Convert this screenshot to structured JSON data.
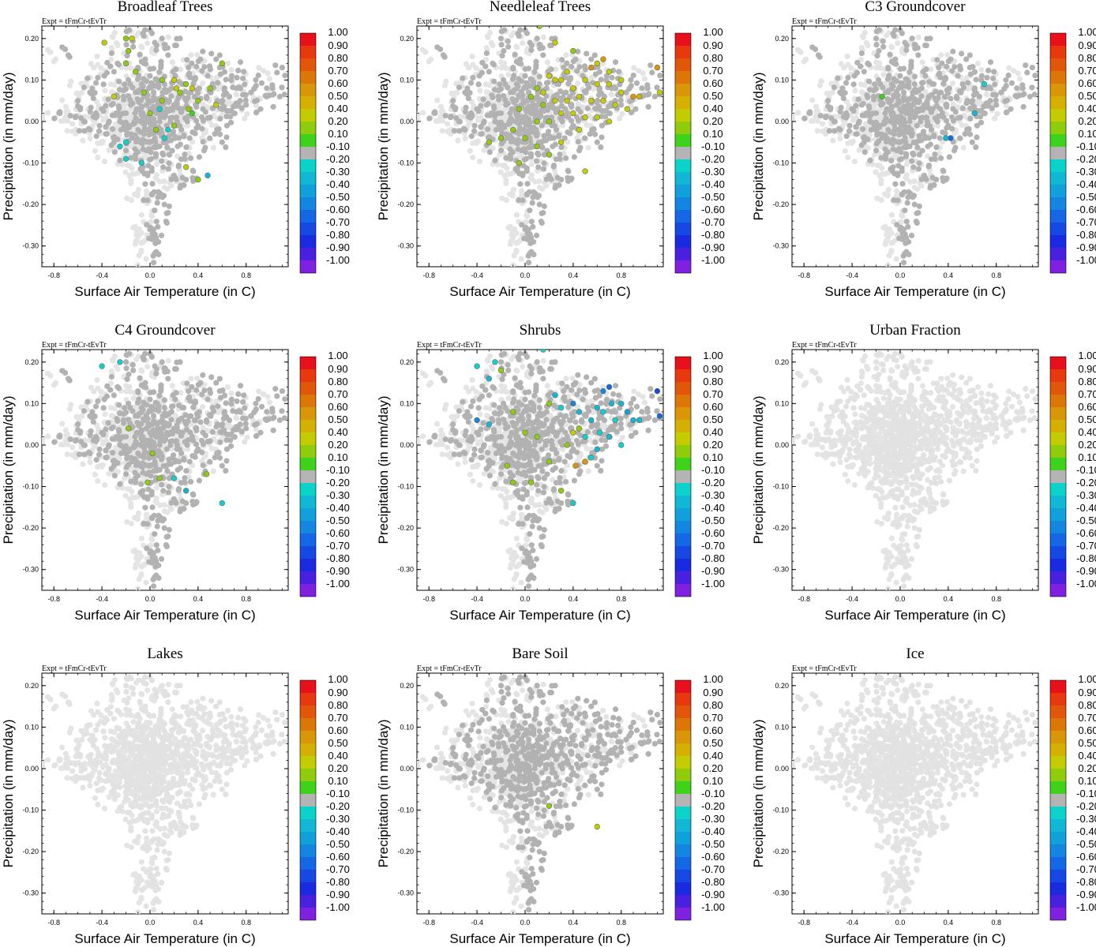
{
  "figure": {
    "experiment_label": "Expt = tFmCr-tEvTr",
    "xlabel": "Surface Air Temperature (in C)",
    "ylabel": "Precipitation (in mm/day)",
    "xlim": [
      -0.9,
      1.15
    ],
    "ylim": [
      -0.35,
      0.23
    ],
    "x_ticks": [
      -0.8,
      -0.4,
      0.0,
      0.4,
      0.8
    ],
    "x_tick_labels": [
      "-0.8",
      "-0.4",
      "0.0",
      "0.4",
      "0.8"
    ],
    "y_ticks": [
      0.2,
      0.1,
      0.0,
      -0.1,
      -0.2,
      -0.3
    ],
    "y_tick_labels": [
      "0.20",
      "0.10",
      "0.00",
      "-0.10",
      "-0.20",
      "-0.30"
    ]
  },
  "colorbar": {
    "labels": [
      "1.00",
      "0.90",
      "0.80",
      "0.70",
      "0.60",
      "0.50",
      "0.40",
      "0.20",
      "0.10",
      "-0.10",
      "-0.20",
      "-0.30",
      "-0.40",
      "-0.50",
      "-0.60",
      "-0.70",
      "-0.80",
      "-0.90",
      "-1.00"
    ],
    "colors": [
      "#e8101a",
      "#e8380e",
      "#e2560a",
      "#dc7606",
      "#d99606",
      "#d6b000",
      "#c2cc00",
      "#8ecc0c",
      "#3ed21a",
      "#b4b4b4",
      "#0cd2cc",
      "#10b8d6",
      "#10a0dc",
      "#1286e0",
      "#1468e6",
      "#1648e4",
      "#1a2ae0",
      "#4a20e0",
      "#8020e0"
    ]
  },
  "panels": [
    {
      "title": "Broadleaf Trees"
    },
    {
      "title": "Needleleaf Trees"
    },
    {
      "title": "C3 Groundcover"
    },
    {
      "title": "C4 Groundcover"
    },
    {
      "title": "Shrubs"
    },
    {
      "title": "Urban Fraction"
    },
    {
      "title": "Lakes"
    },
    {
      "title": "Bare Soil"
    },
    {
      "title": "Ice"
    }
  ],
  "chart_data": {
    "type": "scatter",
    "layout": "3x3 small multiples",
    "title_per_panel": [
      "Broadleaf Trees",
      "Needleleaf Trees",
      "C3 Groundcover",
      "C4 Groundcover",
      "Shrubs",
      "Urban Fraction",
      "Lakes",
      "Bare Soil",
      "Ice"
    ],
    "xlabel": "Surface Air Temperature (in C)",
    "ylabel": "Precipitation (in mm/day)",
    "xlim": [
      -0.9,
      1.15
    ],
    "ylim": [
      -0.35,
      0.23
    ],
    "color_scale": "correlation -1.00 to 1.00",
    "base_points": [
      [
        -0.75,
        0.02
      ],
      [
        -0.68,
        0.16
      ],
      [
        -0.6,
        0.05
      ],
      [
        -0.55,
        0.0
      ],
      [
        -0.5,
        -0.02
      ],
      [
        -0.48,
        0.08
      ],
      [
        -0.45,
        0.02
      ],
      [
        -0.42,
        -0.01
      ],
      [
        -0.4,
        0.03
      ],
      [
        -0.38,
        0.11
      ],
      [
        -0.36,
        -0.03
      ],
      [
        -0.34,
        0.0
      ],
      [
        -0.32,
        0.04
      ],
      [
        -0.3,
        -0.05
      ],
      [
        -0.28,
        0.02
      ],
      [
        -0.27,
        0.14
      ],
      [
        -0.25,
        0.0
      ],
      [
        -0.24,
        -0.02
      ],
      [
        -0.22,
        0.06
      ],
      [
        -0.2,
        -0.07
      ],
      [
        -0.2,
        0.02
      ],
      [
        -0.18,
        0.1
      ],
      [
        -0.17,
        -0.01
      ],
      [
        -0.16,
        0.04
      ],
      [
        -0.15,
        -0.04
      ],
      [
        -0.14,
        0.18
      ],
      [
        -0.13,
        0.0
      ],
      [
        -0.12,
        0.07
      ],
      [
        -0.12,
        -0.09
      ],
      [
        -0.11,
        0.03
      ],
      [
        -0.1,
        -0.02
      ],
      [
        -0.1,
        0.13
      ],
      [
        -0.09,
        0.05
      ],
      [
        -0.08,
        -0.05
      ],
      [
        -0.08,
        0.0
      ],
      [
        -0.07,
        0.09
      ],
      [
        -0.06,
        -0.11
      ],
      [
        -0.06,
        0.02
      ],
      [
        -0.05,
        0.06
      ],
      [
        -0.05,
        -0.03
      ],
      [
        -0.04,
        0.15
      ],
      [
        -0.04,
        0.01
      ],
      [
        -0.03,
        -0.07
      ],
      [
        -0.03,
        0.04
      ],
      [
        -0.02,
        0.0
      ],
      [
        -0.02,
        -0.13
      ],
      [
        -0.01,
        0.08
      ],
      [
        -0.01,
        -0.02
      ],
      [
        0.0,
        0.03
      ],
      [
        0.0,
        -0.05
      ],
      [
        0.0,
        0.11
      ],
      [
        0.01,
        -0.09
      ],
      [
        0.01,
        0.01
      ],
      [
        0.02,
        0.05
      ],
      [
        0.02,
        -0.15
      ],
      [
        0.03,
        -0.01
      ],
      [
        0.03,
        0.07
      ],
      [
        0.04,
        -0.04
      ],
      [
        0.04,
        0.19
      ],
      [
        0.05,
        0.02
      ],
      [
        0.05,
        -0.08
      ],
      [
        0.06,
        0.1
      ],
      [
        0.06,
        -0.02
      ],
      [
        0.07,
        0.04
      ],
      [
        0.07,
        -0.17
      ],
      [
        0.08,
        0.0
      ],
      [
        0.08,
        -0.06
      ],
      [
        0.09,
        0.13
      ],
      [
        0.09,
        0.03
      ],
      [
        0.1,
        -0.03
      ],
      [
        0.1,
        0.06
      ],
      [
        0.11,
        -0.11
      ],
      [
        0.12,
        0.01
      ],
      [
        0.12,
        0.09
      ],
      [
        0.13,
        -0.05
      ],
      [
        0.14,
        0.03
      ],
      [
        0.14,
        -0.01
      ],
      [
        0.15,
        0.16
      ],
      [
        0.16,
        0.05
      ],
      [
        0.16,
        -0.08
      ],
      [
        0.17,
        0.0
      ],
      [
        0.18,
        0.08
      ],
      [
        0.19,
        -0.03
      ],
      [
        0.2,
        0.04
      ],
      [
        0.2,
        -0.13
      ],
      [
        0.21,
        0.11
      ],
      [
        0.22,
        0.01
      ],
      [
        0.23,
        -0.06
      ],
      [
        0.24,
        0.06
      ],
      [
        0.25,
        0.2
      ],
      [
        0.26,
        -0.02
      ],
      [
        0.27,
        0.03
      ],
      [
        0.28,
        0.09
      ],
      [
        0.29,
        -0.09
      ],
      [
        0.3,
        0.05
      ],
      [
        0.31,
        0.0
      ],
      [
        0.32,
        0.13
      ],
      [
        0.33,
        -0.04
      ],
      [
        0.34,
        0.07
      ],
      [
        0.35,
        0.02
      ],
      [
        0.36,
        -0.12
      ],
      [
        0.37,
        0.1
      ],
      [
        0.38,
        0.04
      ],
      [
        0.4,
        -0.01
      ],
      [
        0.41,
        0.08
      ],
      [
        0.42,
        0.15
      ],
      [
        0.44,
        0.03
      ],
      [
        0.45,
        -0.07
      ],
      [
        0.47,
        0.06
      ],
      [
        0.48,
        0.11
      ],
      [
        0.5,
        0.01
      ],
      [
        0.52,
        0.09
      ],
      [
        0.54,
        -0.03
      ],
      [
        0.56,
        0.05
      ],
      [
        0.58,
        0.13
      ],
      [
        0.6,
        0.03
      ],
      [
        0.62,
        0.08
      ],
      [
        0.64,
        -0.01
      ],
      [
        0.66,
        0.06
      ],
      [
        0.68,
        0.11
      ],
      [
        0.7,
        0.02
      ],
      [
        0.72,
        0.08
      ],
      [
        0.75,
        0.05
      ],
      [
        0.78,
        0.12
      ],
      [
        0.8,
        0.04
      ],
      [
        0.84,
        0.07
      ],
      [
        0.88,
        0.1
      ],
      [
        0.92,
        0.03
      ],
      [
        0.97,
        0.06
      ],
      [
        1.02,
        0.08
      ],
      [
        1.08,
        0.06
      ],
      [
        1.1,
        0.13
      ],
      [
        0.0,
        -0.26
      ],
      [
        0.02,
        -0.27
      ],
      [
        0.05,
        -0.28
      ],
      [
        0.07,
        -0.29
      ],
      [
        0.03,
        -0.34
      ],
      [
        -0.02,
        -0.19
      ],
      [
        0.12,
        -0.2
      ],
      [
        0.25,
        -0.16
      ],
      [
        0.0,
        0.22
      ],
      [
        0.1,
        0.2
      ],
      [
        -0.2,
        0.2
      ],
      [
        0.3,
        -0.14
      ],
      [
        -0.3,
        0.12
      ],
      [
        0.55,
        0.15
      ],
      [
        0.6,
        -0.05
      ],
      [
        -0.5,
        0.07
      ],
      [
        -0.62,
        0.01
      ],
      [
        0.15,
        -0.22
      ]
    ],
    "colored_points": {
      "Broadleaf Trees": [
        [
          -0.2,
          0.2,
          0.2
        ],
        [
          -0.15,
          0.2,
          0.3
        ],
        [
          -0.38,
          0.19,
          0.4
        ],
        [
          -0.18,
          0.17,
          0.2
        ],
        [
          -0.2,
          0.14,
          0.2
        ],
        [
          -0.12,
          0.12,
          0.2
        ],
        [
          0.1,
          0.1,
          0.2
        ],
        [
          0.2,
          0.1,
          0.3
        ],
        [
          0.3,
          0.09,
          0.2
        ],
        [
          0.6,
          0.14,
          0.2
        ],
        [
          0.5,
          0.08,
          0.2
        ],
        [
          -0.05,
          0.07,
          0.2
        ],
        [
          -0.3,
          0.06,
          0.3
        ],
        [
          0.25,
          0.07,
          0.2
        ],
        [
          0.4,
          0.05,
          0.2
        ],
        [
          0.55,
          0.04,
          0.3
        ],
        [
          0.35,
          0.02,
          0.1
        ],
        [
          0.0,
          0.02,
          0.2
        ],
        [
          0.15,
          -0.02,
          -0.2
        ],
        [
          -0.2,
          -0.05,
          -0.2
        ],
        [
          -0.25,
          -0.06,
          -0.2
        ],
        [
          -0.2,
          -0.09,
          -0.2
        ],
        [
          0.3,
          -0.11,
          0.3
        ],
        [
          0.4,
          -0.14,
          0.2
        ],
        [
          0.48,
          -0.13,
          -0.3
        ],
        [
          0.1,
          0.05,
          0.2
        ],
        [
          0.2,
          -0.01,
          0.2
        ],
        [
          0.32,
          0.03,
          0.2
        ],
        [
          0.12,
          -0.04,
          -0.2
        ],
        [
          -0.07,
          -0.1,
          -0.2
        ],
        [
          0.35,
          0.08,
          0.3
        ],
        [
          0.05,
          -0.02,
          0.2
        ],
        [
          0.22,
          0.08,
          0.3
        ],
        [
          0.08,
          0.03,
          -0.2
        ]
      ],
      "Needleleaf Trees": [
        [
          0.12,
          0.23,
          0.2
        ],
        [
          0.25,
          0.19,
          0.3
        ],
        [
          0.4,
          0.17,
          0.2
        ],
        [
          0.55,
          0.13,
          0.6
        ],
        [
          0.65,
          0.15,
          0.6
        ],
        [
          0.6,
          0.14,
          0.4
        ],
        [
          1.1,
          0.13,
          0.6
        ],
        [
          0.9,
          0.06,
          0.6
        ],
        [
          0.95,
          0.06,
          0.5
        ],
        [
          1.12,
          0.07,
          0.4
        ],
        [
          0.2,
          0.11,
          0.3
        ],
        [
          0.3,
          0.1,
          0.3
        ],
        [
          0.5,
          0.1,
          0.4
        ],
        [
          0.7,
          0.09,
          0.3
        ],
        [
          0.8,
          0.07,
          0.3
        ],
        [
          0.4,
          0.08,
          0.4
        ],
        [
          0.1,
          0.08,
          0.2
        ],
        [
          0.15,
          0.04,
          0.2
        ],
        [
          0.25,
          0.05,
          0.3
        ],
        [
          0.35,
          0.05,
          0.3
        ],
        [
          0.45,
          0.06,
          0.3
        ],
        [
          0.55,
          0.05,
          0.4
        ],
        [
          0.65,
          0.05,
          0.3
        ],
        [
          0.75,
          0.04,
          0.4
        ],
        [
          0.85,
          0.03,
          0.3
        ],
        [
          0.3,
          0.02,
          0.3
        ],
        [
          0.4,
          0.02,
          0.4
        ],
        [
          0.5,
          0.01,
          0.3
        ],
        [
          0.6,
          0.01,
          0.3
        ],
        [
          0.7,
          0.0,
          0.3
        ],
        [
          0.2,
          0.0,
          0.2
        ],
        [
          0.1,
          0.0,
          0.2
        ],
        [
          -0.1,
          -0.02,
          0.2
        ],
        [
          -0.2,
          -0.04,
          0.2
        ],
        [
          -0.3,
          -0.05,
          0.2
        ],
        [
          0.0,
          -0.04,
          0.2
        ],
        [
          0.1,
          -0.06,
          0.2
        ],
        [
          0.2,
          -0.08,
          0.2
        ],
        [
          0.3,
          -0.05,
          0.3
        ],
        [
          0.45,
          -0.02,
          0.3
        ],
        [
          0.5,
          -0.12,
          0.4
        ],
        [
          -0.05,
          -0.1,
          0.2
        ],
        [
          0.25,
          0.1,
          0.4
        ],
        [
          0.35,
          0.12,
          0.3
        ],
        [
          0.15,
          0.07,
          0.3
        ],
        [
          0.05,
          0.06,
          0.2
        ],
        [
          -0.05,
          0.03,
          0.2
        ],
        [
          0.6,
          0.09,
          0.3
        ],
        [
          0.8,
          0.1,
          0.3
        ],
        [
          0.7,
          0.12,
          0.4
        ]
      ],
      "C3 Groundcover": [
        [
          -0.15,
          0.06,
          0.1
        ],
        [
          0.7,
          0.09,
          -0.2
        ],
        [
          0.42,
          -0.04,
          -0.6
        ],
        [
          0.38,
          -0.04,
          -0.3
        ],
        [
          0.62,
          0.02,
          -0.3
        ]
      ],
      "C4 Groundcover": [
        [
          -0.4,
          0.19,
          -0.2
        ],
        [
          -0.25,
          0.2,
          -0.2
        ],
        [
          -0.18,
          0.04,
          0.2
        ],
        [
          0.02,
          -0.02,
          0.2
        ],
        [
          -0.02,
          -0.09,
          0.2
        ],
        [
          0.08,
          -0.08,
          0.2
        ],
        [
          0.3,
          -0.11,
          -0.3
        ],
        [
          0.47,
          -0.07,
          0.2
        ],
        [
          0.6,
          -0.14,
          -0.2
        ],
        [
          0.2,
          -0.08,
          -0.2
        ]
      ],
      "Shrubs": [
        [
          -0.4,
          0.19,
          -0.2
        ],
        [
          -0.25,
          0.2,
          -0.2
        ],
        [
          -0.3,
          0.16,
          -0.3
        ],
        [
          -0.2,
          0.18,
          0.2
        ],
        [
          0.15,
          0.23,
          -0.2
        ],
        [
          0.7,
          0.14,
          -0.6
        ],
        [
          0.65,
          0.13,
          -0.5
        ],
        [
          1.1,
          0.13,
          -0.7
        ],
        [
          1.12,
          0.07,
          -0.6
        ],
        [
          0.95,
          0.06,
          -0.3
        ],
        [
          0.9,
          0.06,
          -0.3
        ],
        [
          0.8,
          0.1,
          -0.3
        ],
        [
          0.75,
          0.06,
          -0.2
        ],
        [
          0.6,
          0.09,
          -0.3
        ],
        [
          0.55,
          0.06,
          -0.3
        ],
        [
          0.45,
          0.08,
          -0.3
        ],
        [
          0.4,
          0.1,
          -0.5
        ],
        [
          0.3,
          0.09,
          -0.2
        ],
        [
          0.25,
          0.12,
          -0.3
        ],
        [
          0.5,
          0.02,
          -0.2
        ],
        [
          0.62,
          0.03,
          -0.2
        ],
        [
          0.7,
          0.02,
          -0.3
        ],
        [
          0.8,
          0.0,
          -0.2
        ],
        [
          0.6,
          -0.01,
          -0.3
        ],
        [
          0.55,
          -0.03,
          -0.2
        ],
        [
          0.4,
          0.03,
          0.3
        ],
        [
          0.45,
          0.04,
          0.2
        ],
        [
          0.2,
          0.1,
          0.2
        ],
        [
          -0.4,
          0.06,
          -0.5
        ],
        [
          -0.3,
          0.05,
          -0.3
        ],
        [
          -0.1,
          0.08,
          0.2
        ],
        [
          0.0,
          0.03,
          0.2
        ],
        [
          0.1,
          0.02,
          0.2
        ],
        [
          -0.1,
          -0.09,
          0.2
        ],
        [
          0.05,
          -0.09,
          0.2
        ],
        [
          0.3,
          -0.11,
          0.2
        ],
        [
          0.4,
          -0.14,
          -0.2
        ],
        [
          0.5,
          -0.04,
          0.6
        ],
        [
          0.42,
          -0.05,
          0.6
        ],
        [
          0.35,
          0.0,
          0.2
        ],
        [
          0.2,
          -0.04,
          0.2
        ],
        [
          -0.15,
          -0.05,
          0.2
        ],
        [
          0.65,
          0.08,
          -0.2
        ],
        [
          0.72,
          0.1,
          -0.3
        ],
        [
          0.85,
          0.08,
          -0.4
        ]
      ],
      "Urban Fraction": [],
      "Lakes": [],
      "Bare Soil": [
        [
          0.2,
          -0.09,
          0.2
        ],
        [
          0.6,
          -0.14,
          0.4
        ]
      ],
      "Ice": []
    }
  }
}
